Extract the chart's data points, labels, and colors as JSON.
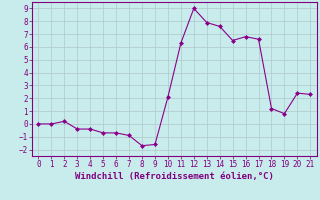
{
  "x": [
    0,
    1,
    2,
    3,
    4,
    5,
    6,
    7,
    8,
    9,
    10,
    11,
    12,
    13,
    14,
    15,
    16,
    17,
    18,
    19,
    20,
    21
  ],
  "y": [
    0.0,
    0.0,
    0.2,
    -0.4,
    -0.4,
    -0.7,
    -0.7,
    -0.9,
    -1.7,
    -1.6,
    2.1,
    6.3,
    9.0,
    7.9,
    7.6,
    6.5,
    6.8,
    6.6,
    1.2,
    0.8,
    2.4,
    2.3
  ],
  "line_color": "#8b008b",
  "marker": "D",
  "marker_size": 2,
  "bg_color": "#c8ecec",
  "grid_color": "#b0c8c8",
  "xlabel": "Windchill (Refroidissement éolien,°C)",
  "xlim": [
    -0.5,
    21.5
  ],
  "ylim": [
    -2.5,
    9.5
  ],
  "yticks": [
    -2,
    -1,
    0,
    1,
    2,
    3,
    4,
    5,
    6,
    7,
    8,
    9
  ],
  "xticks": [
    0,
    1,
    2,
    3,
    4,
    5,
    6,
    7,
    8,
    9,
    10,
    11,
    12,
    13,
    14,
    15,
    16,
    17,
    18,
    19,
    20,
    21
  ],
  "tick_color": "#800080",
  "label_fontsize": 6.5,
  "tick_fontsize": 5.5,
  "spine_color": "#800080"
}
